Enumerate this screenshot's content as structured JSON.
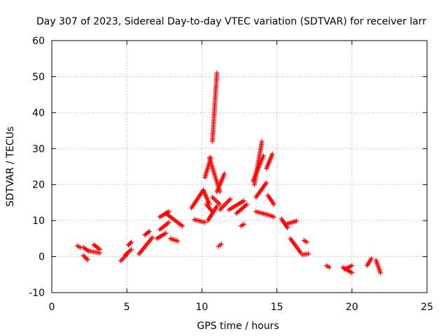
{
  "colors": {
    "series": "#ff0000",
    "grid": "#a0a0a0",
    "axis": "#000000"
  },
  "chart_data": {
    "type": "scatter",
    "title": "Day 307 of 2023, Sidereal Day-to-day VTEC variation (SDTVAR) for receiver larr",
    "xlabel": "GPS time / hours",
    "ylabel": "SDTVAR / TECUs",
    "xlim": [
      0,
      25
    ],
    "ylim": [
      -10,
      60
    ],
    "x_ticks": [
      0,
      5,
      10,
      15,
      20,
      25
    ],
    "y_ticks": [
      -10,
      0,
      10,
      20,
      30,
      40,
      50,
      60
    ],
    "grid": true,
    "marker": "+",
    "series": [
      {
        "name": "SDTVAR",
        "tracks": [
          {
            "x": [
              1.7,
              1.9
            ],
            "y": [
              3.0,
              2.5
            ]
          },
          {
            "x": [
              2.1,
              2.4
            ],
            "y": [
              0.3,
              -0.9
            ]
          },
          {
            "x": [
              2.1,
              2.45
            ],
            "y": [
              2.6,
              1.5
            ]
          },
          {
            "x": [
              2.45,
              3.2
            ],
            "y": [
              1.6,
              1.0
            ]
          },
          {
            "x": [
              2.8,
              3.2
            ],
            "y": [
              3.3,
              2.0
            ]
          },
          {
            "x": [
              4.6,
              5.0
            ],
            "y": [
              -1.2,
              0.6
            ]
          },
          {
            "x": [
              4.9,
              5.3
            ],
            "y": [
              0.5,
              2.0
            ]
          },
          {
            "x": [
              5.1,
              5.3
            ],
            "y": [
              3.2,
              4.0
            ]
          },
          {
            "x": [
              5.8,
              6.7
            ],
            "y": [
              0.7,
              5.3
            ]
          },
          {
            "x": [
              6.2,
              6.5
            ],
            "y": [
              6.0,
              7.0
            ]
          },
          {
            "x": [
              7.0,
              7.6
            ],
            "y": [
              5.0,
              6.5
            ]
          },
          {
            "x": [
              7.2,
              7.8
            ],
            "y": [
              11.0,
              12.5
            ]
          },
          {
            "x": [
              7.2,
              7.8
            ],
            "y": [
              7.5,
              9.5
            ]
          },
          {
            "x": [
              7.6,
              8.7
            ],
            "y": [
              12.0,
              8.5
            ]
          },
          {
            "x": [
              7.9,
              8.4
            ],
            "y": [
              5.0,
              4.3
            ]
          },
          {
            "x": [
              9.3,
              10.1
            ],
            "y": [
              13.5,
              18.5
            ]
          },
          {
            "x": [
              9.5,
              10.2
            ],
            "y": [
              10.3,
              9.5
            ]
          },
          {
            "x": [
              10.1,
              10.5
            ],
            "y": [
              18.5,
              14.5
            ]
          },
          {
            "x": [
              10.3,
              10.7
            ],
            "y": [
              14.5,
              12.5
            ]
          },
          {
            "x": [
              10.2,
              10.6
            ],
            "y": [
              22.0,
              27.5
            ]
          },
          {
            "x": [
              10.5,
              11.2
            ],
            "y": [
              27.5,
              18.0
            ]
          },
          {
            "x": [
              10.7,
              11.2
            ],
            "y": [
              16.5,
              14.5
            ]
          },
          {
            "x": [
              10.4,
              11.0
            ],
            "y": [
              10.0,
              14.0
            ]
          },
          {
            "x": [
              11.0,
              11.5
            ],
            "y": [
              18.0,
              23.0
            ]
          },
          {
            "x": [
              11.2,
              11.9
            ],
            "y": [
              13.0,
              16.0
            ]
          },
          {
            "x": [
              10.7,
              11.0
            ],
            "y": [
              32.0,
              51.0
            ]
          },
          {
            "x": [
              11.1,
              11.3
            ],
            "y": [
              2.8,
              3.5
            ]
          },
          {
            "x": [
              11.8,
              12.8
            ],
            "y": [
              13.0,
              15.5
            ]
          },
          {
            "x": [
              12.3,
              13.0
            ],
            "y": [
              12.0,
              14.5
            ]
          },
          {
            "x": [
              12.6,
              12.8
            ],
            "y": [
              8.5,
              9.0
            ]
          },
          {
            "x": [
              13.5,
              14.0
            ],
            "y": [
              20.0,
              32.0
            ]
          },
          {
            "x": [
              13.4,
              14.1
            ],
            "y": [
              21.0,
              28.0
            ]
          },
          {
            "x": [
              13.6,
              14.3
            ],
            "y": [
              16.5,
              20.5
            ]
          },
          {
            "x": [
              13.6,
              14.4
            ],
            "y": [
              12.5,
              11.6
            ]
          },
          {
            "x": [
              14.3,
              14.7
            ],
            "y": [
              24.5,
              28.5
            ]
          },
          {
            "x": [
              14.4,
              14.8
            ],
            "y": [
              17.0,
              14.5
            ]
          },
          {
            "x": [
              14.5,
              14.8
            ],
            "y": [
              11.5,
              11.0
            ]
          },
          {
            "x": [
              15.3,
              15.7
            ],
            "y": [
              10.5,
              8.0
            ]
          },
          {
            "x": [
              15.6,
              16.3
            ],
            "y": [
              9.0,
              9.9
            ]
          },
          {
            "x": [
              15.9,
              16.6
            ],
            "y": [
              5.0,
              1.0
            ]
          },
          {
            "x": [
              16.7,
              17.1
            ],
            "y": [
              0.5,
              0.8
            ]
          },
          {
            "x": [
              16.8,
              17.0
            ],
            "y": [
              4.5,
              4.0
            ]
          },
          {
            "x": [
              18.3,
              18.5
            ],
            "y": [
              -2.5,
              -3.0
            ]
          },
          {
            "x": [
              19.4,
              20.0
            ],
            "y": [
              -3.0,
              -4.5
            ]
          },
          {
            "x": [
              19.5,
              20.0
            ],
            "y": [
              -3.5,
              -2.5
            ]
          },
          {
            "x": [
              21.0,
              21.3
            ],
            "y": [
              -2.5,
              -0.5
            ]
          },
          {
            "x": [
              21.6,
              21.9
            ],
            "y": [
              -1.0,
              -4.5
            ]
          }
        ]
      }
    ]
  }
}
